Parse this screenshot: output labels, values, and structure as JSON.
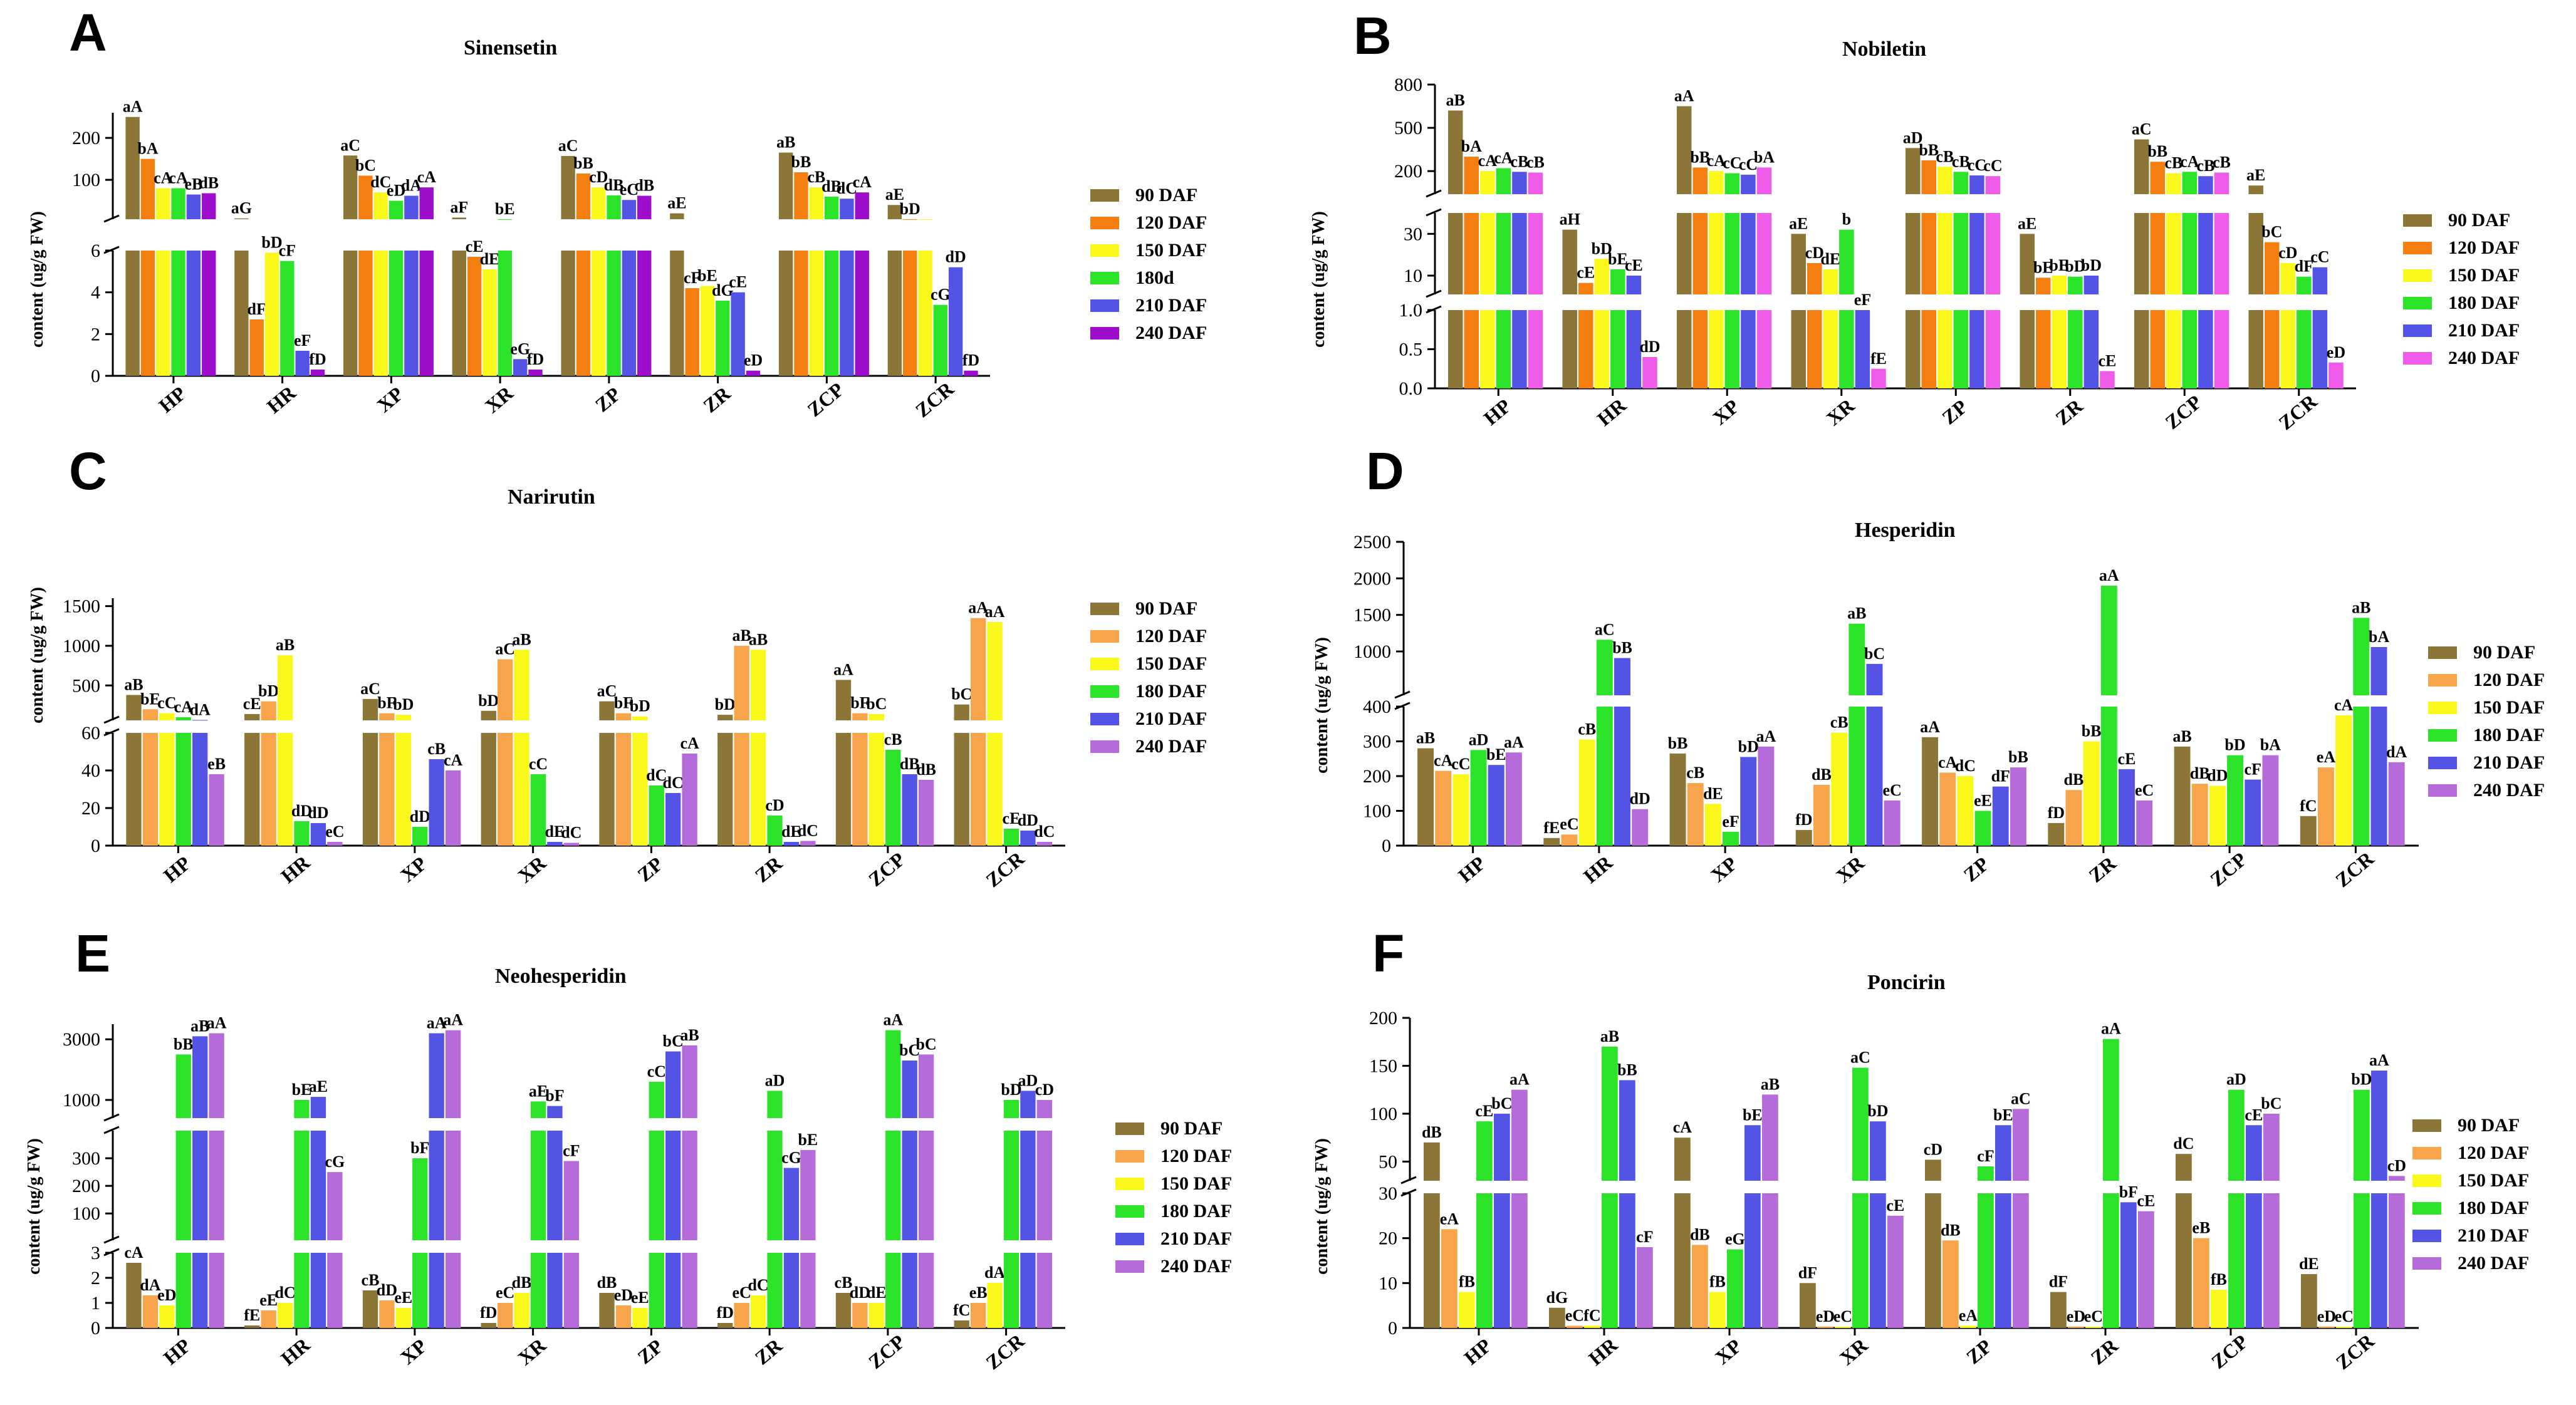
{
  "colors": {
    "c90": "#8B7537",
    "c120": "#F57E11",
    "c150": "#F9F81A",
    "c180": "#2BE429",
    "c210": "#5353E6",
    "c240_purple": "#9E0CCC",
    "c240_pink": "#EE5BE9",
    "c240_violet": "#B56BDA",
    "c120_light": "#F8A44A"
  },
  "categories": [
    "HP",
    "HR",
    "XP",
    "XR",
    "ZP",
    "ZR",
    "ZCP",
    "ZCR"
  ],
  "panels": [
    {
      "letter": "A",
      "title": "Sinensetin",
      "ylabel": "content (ug/g FW)",
      "legend": [
        "90 DAF",
        "120 DAF",
        "150 DAF",
        "180d",
        "210 DAF",
        "240 DAF"
      ],
      "legend_colors": [
        "c90",
        "c120",
        "c150",
        "c180",
        "c210",
        "c240_purple"
      ],
      "segments": [
        {
          "range": [
            0,
            6
          ],
          "ticks": [
            0,
            2,
            4,
            6
          ]
        },
        {
          "range": [
            6,
            260
          ],
          "ticks": [
            100,
            200
          ]
        }
      ],
      "data": [
        [
          250,
          150,
          80,
          80,
          65,
          68
        ],
        [
          8,
          2.7,
          5.9,
          5.5,
          1.2,
          0.3
        ],
        [
          158,
          110,
          70,
          50,
          62,
          82
        ],
        [
          10,
          5.7,
          5.1,
          6.1,
          0.8,
          0.3
        ],
        [
          157,
          115,
          82,
          63,
          52,
          62
        ],
        [
          20,
          4.2,
          4.3,
          3.6,
          4.0,
          0.25
        ],
        [
          165,
          118,
          82,
          60,
          55,
          70
        ],
        [
          40,
          6.1,
          6.1,
          3.4,
          5.2,
          0.25
        ]
      ],
      "labels": [
        [
          "aA",
          "bA",
          "cA",
          "cA",
          "eB",
          "dB"
        ],
        [
          "aG",
          "dF",
          "bD",
          "cF",
          "eF",
          "fD"
        ],
        [
          "aC",
          "bC",
          "dC",
          "eD",
          "dA",
          "cA"
        ],
        [
          "aF",
          "cE",
          "dE",
          "bE",
          "eG",
          "fD"
        ],
        [
          "aC",
          "bB",
          "cD",
          "dB",
          "eC",
          "dB"
        ],
        [
          "aE",
          "cF",
          "bE",
          "dG",
          "cE",
          "eD"
        ],
        [
          "aB",
          "bB",
          "cB",
          "dB",
          "dC",
          "cA"
        ],
        [
          "aE",
          "bD",
          "",
          "cG",
          "dD",
          "fD"
        ]
      ]
    },
    {
      "letter": "B",
      "title": "Nobiletin",
      "ylabel": "content (ug/g FW)",
      "legend": [
        "90 DAF",
        "120 DAF",
        "150 DAF",
        "180 DAF",
        "210 DAF",
        "240 DAF"
      ],
      "legend_colors": [
        "c90",
        "c120",
        "c150",
        "c180",
        "c210",
        "c240_pink"
      ],
      "segments": [
        {
          "range": [
            0,
            1
          ],
          "ticks": [
            0.0,
            0.5,
            1.0
          ]
        },
        {
          "range": [
            1,
            40
          ],
          "ticks": [
            10,
            30
          ]
        },
        {
          "range": [
            40,
            800
          ],
          "ticks": [
            200,
            500,
            800
          ]
        }
      ],
      "data": [
        [
          620,
          300,
          200,
          220,
          195,
          190
        ],
        [
          32,
          6.5,
          18,
          13,
          10,
          0.4
        ],
        [
          650,
          225,
          200,
          185,
          175,
          225
        ],
        [
          30,
          16,
          13,
          32,
          1.0,
          0.25
        ],
        [
          360,
          275,
          230,
          195,
          170,
          165
        ],
        [
          30,
          9,
          10,
          9.5,
          10,
          0.22
        ],
        [
          420,
          265,
          185,
          195,
          165,
          190
        ],
        [
          100,
          26,
          16,
          9.5,
          14,
          0.33
        ]
      ],
      "labels": [
        [
          "aB",
          "bA",
          "cA",
          "cA",
          "cB",
          "cB"
        ],
        [
          "aH",
          "cE",
          "bD",
          "bE",
          "cE",
          "dD"
        ],
        [
          "aA",
          "bB",
          "cA",
          "cC",
          "cC",
          "bA"
        ],
        [
          "aE",
          "cD",
          "dE",
          "b",
          "eF",
          "fE"
        ],
        [
          "aD",
          "bB",
          "cB",
          "cB",
          "cC",
          "cC"
        ],
        [
          "aE",
          "bE",
          "bE",
          "bD",
          "bD",
          "cE"
        ],
        [
          "aC",
          "bB",
          "cB",
          "cA",
          "cB",
          "cB"
        ],
        [
          "aE",
          "bC",
          "cD",
          "dF",
          "cC",
          "eD"
        ]
      ]
    },
    {
      "letter": "C",
      "title": "Narirutin",
      "ylabel": "content (ug/g FW)",
      "legend": [
        "90 DAF",
        "120 DAF",
        "150 DAF",
        "180 DAF",
        "210 DAF",
        "240 DAF"
      ],
      "legend_colors": [
        "c90",
        "c120_light",
        "c150",
        "c180",
        "c210",
        "c240_violet"
      ],
      "segments": [
        {
          "range": [
            0,
            60
          ],
          "ticks": [
            0,
            20,
            40,
            60
          ]
        },
        {
          "range": [
            60,
            1600
          ],
          "ticks": [
            500,
            1000,
            1500
          ]
        }
      ],
      "data": [
        [
          380,
          200,
          150,
          100,
          65,
          38
        ],
        [
          140,
          300,
          880,
          13,
          12,
          2
        ],
        [
          330,
          150,
          130,
          10,
          46,
          40
        ],
        [
          180,
          830,
          950,
          38,
          2,
          1.5
        ],
        [
          300,
          150,
          110,
          32,
          28,
          49
        ],
        [
          130,
          1000,
          950,
          16,
          2,
          2.5
        ],
        [
          570,
          150,
          140,
          51,
          38,
          35
        ],
        [
          260,
          1350,
          1300,
          9,
          8,
          2
        ]
      ],
      "labels": [
        [
          "aB",
          "bE",
          "cC",
          "cA",
          "dA",
          "eB"
        ],
        [
          "cE",
          "bD",
          "aB",
          "dD",
          "dD",
          "eC"
        ],
        [
          "aC",
          "bF",
          "bD",
          "dD",
          "cB",
          "cA"
        ],
        [
          "bD",
          "aC",
          "aB",
          "cC",
          "dE",
          "dC"
        ],
        [
          "aC",
          "bF",
          "bD",
          "dC",
          "dC",
          "cA"
        ],
        [
          "bD",
          "aB",
          "aB",
          "cD",
          "dE",
          "dC"
        ],
        [
          "aA",
          "bF",
          "bC",
          "cB",
          "dB",
          "dB"
        ],
        [
          "bC",
          "aA",
          "aA",
          "cE",
          "dD",
          "dC"
        ]
      ]
    },
    {
      "letter": "D",
      "title": "Hesperidin",
      "ylabel": "content (ug/g FW)",
      "legend": [
        "90 DAF",
        "120 DAF",
        "150 DAF",
        "180 DAF",
        "210 DAF",
        "240 DAF"
      ],
      "legend_colors": [
        "c90",
        "c120_light",
        "c150",
        "c180",
        "c210",
        "c240_violet"
      ],
      "segments": [
        {
          "range": [
            0,
            400
          ],
          "ticks": [
            0,
            100,
            200,
            300,
            400
          ]
        },
        {
          "range": [
            400,
            2500
          ],
          "ticks": [
            1000,
            1500,
            2000,
            2500
          ]
        }
      ],
      "data": [
        [
          280,
          215,
          205,
          275,
          232,
          268
        ],
        [
          22,
          32,
          305,
          1160,
          910,
          105
        ],
        [
          265,
          180,
          120,
          40,
          255,
          285
        ],
        [
          45,
          175,
          325,
          1380,
          830,
          130
        ],
        [
          312,
          210,
          200,
          100,
          170,
          225
        ],
        [
          65,
          160,
          300,
          1900,
          220,
          130
        ],
        [
          285,
          178,
          172,
          260,
          190,
          260
        ],
        [
          85,
          225,
          375,
          1460,
          1060,
          240
        ]
      ],
      "labels": [
        [
          "aB",
          "cA",
          "cC",
          "aD",
          "bE",
          "aA"
        ],
        [
          "fE",
          "eC",
          "cB",
          "aC",
          "bB",
          "dD"
        ],
        [
          "bB",
          "cB",
          "dE",
          "eF",
          "bD",
          "aA"
        ],
        [
          "fD",
          "dB",
          "cB",
          "aB",
          "bC",
          "eC"
        ],
        [
          "aA",
          "cA",
          "dC",
          "eE",
          "dF",
          "bB"
        ],
        [
          "fD",
          "dB",
          "bB",
          "aA",
          "cE",
          "eC"
        ],
        [
          "aB",
          "dB",
          "dD",
          "bD",
          "cF",
          "bA"
        ],
        [
          "fC",
          "eA",
          "cA",
          "aB",
          "bA",
          "dA"
        ]
      ]
    },
    {
      "letter": "E",
      "title": "Neohesperidin",
      "ylabel": "content (ug/g FW)",
      "legend": [
        "90 DAF",
        "120 DAF",
        "150 DAF",
        "180 DAF",
        "210 DAF",
        "240 DAF"
      ],
      "legend_colors": [
        "c90",
        "c120_light",
        "c150",
        "c180",
        "c210",
        "c240_violet"
      ],
      "segments": [
        {
          "range": [
            0,
            3
          ],
          "ticks": [
            0,
            1,
            2,
            3
          ]
        },
        {
          "range": [
            3,
            400
          ],
          "ticks": [
            100,
            200,
            300
          ]
        },
        {
          "range": [
            400,
            3500
          ],
          "ticks": [
            1000,
            3000
          ]
        }
      ],
      "data": [
        [
          2.6,
          1.3,
          0.9,
          2500,
          3100,
          3200
        ],
        [
          0.1,
          0.7,
          1.0,
          1000,
          1100,
          250
        ],
        [
          1.5,
          1.1,
          0.8,
          300,
          3200,
          3300
        ],
        [
          0.2,
          1.0,
          1.4,
          950,
          800,
          290
        ],
        [
          1.4,
          0.9,
          0.8,
          1600,
          2600,
          2800
        ],
        [
          0.2,
          1.0,
          1.3,
          1300,
          265,
          330
        ],
        [
          1.4,
          1.0,
          1.0,
          3300,
          2300,
          2500
        ],
        [
          0.3,
          1.0,
          1.8,
          1000,
          1300,
          1000
        ]
      ],
      "labels": [
        [
          "cA",
          "dA",
          "eD",
          "bB",
          "aB",
          "aA"
        ],
        [
          "fE",
          "eE",
          "dC",
          "bE",
          "aE",
          "cG"
        ],
        [
          "cB",
          "dD",
          "eE",
          "bF",
          "aA",
          "aA"
        ],
        [
          "fD",
          "eC",
          "dB",
          "aE",
          "bF",
          "cF"
        ],
        [
          "dB",
          "eD",
          "eE",
          "cC",
          "bC",
          "aB"
        ],
        [
          "fD",
          "eC",
          "dC",
          "aD",
          "cG",
          "bE"
        ],
        [
          "cB",
          "dD",
          "dE",
          "aA",
          "bC",
          "bC"
        ],
        [
          "fC",
          "eB",
          "dA",
          "bD",
          "aD",
          "cD"
        ]
      ]
    },
    {
      "letter": "F",
      "title": "Poncirin",
      "ylabel": "content (ug/g FW)",
      "legend": [
        "90 DAF",
        "120 DAF",
        "150 DAF",
        "180 DAF",
        "210 DAF",
        "240 DAF"
      ],
      "legend_colors": [
        "c90",
        "c120_light",
        "c150",
        "c180",
        "c210",
        "c240_violet"
      ],
      "segments": [
        {
          "range": [
            0,
            30
          ],
          "ticks": [
            0,
            10,
            20,
            30
          ]
        },
        {
          "range": [
            30,
            200
          ],
          "ticks": [
            50,
            100,
            150,
            200
          ]
        }
      ],
      "data": [
        [
          70,
          22,
          8,
          92,
          100,
          125
        ],
        [
          4.5,
          0.5,
          0.5,
          170,
          135,
          18
        ],
        [
          75,
          18.5,
          8,
          17.5,
          88,
          120
        ],
        [
          10,
          0.3,
          0.3,
          148,
          92,
          25
        ],
        [
          52,
          19.5,
          0.5,
          45,
          88,
          105
        ],
        [
          8,
          0.3,
          0.3,
          178,
          28,
          26
        ],
        [
          58,
          20,
          8.5,
          125,
          88,
          100
        ],
        [
          12,
          0.3,
          0.3,
          125,
          145,
          35
        ]
      ],
      "labels": [
        [
          "dB",
          "eA",
          "fB",
          "cE",
          "bC",
          "aA"
        ],
        [
          "dG",
          "eC",
          "fC",
          "aB",
          "bB",
          "cF"
        ],
        [
          "cA",
          "dB",
          "fB",
          "eG",
          "bE",
          "aB"
        ],
        [
          "dF",
          "eD",
          "eC",
          "aC",
          "bD",
          "cE"
        ],
        [
          "cD",
          "dB",
          "eA",
          "cF",
          "bE",
          "aC"
        ],
        [
          "dF",
          "eD",
          "eC",
          "aA",
          "bF",
          "cE"
        ],
        [
          "dC",
          "eB",
          "fB",
          "aD",
          "cE",
          "bC"
        ],
        [
          "dE",
          "eD",
          "eC",
          "bD",
          "aA",
          "cD"
        ]
      ]
    }
  ]
}
